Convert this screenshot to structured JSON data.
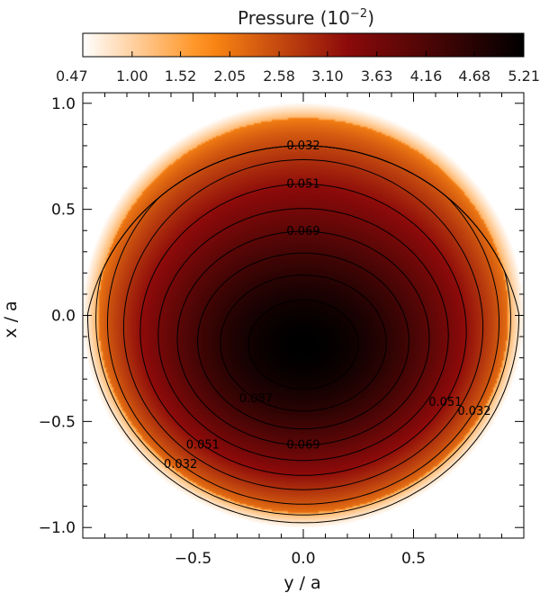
{
  "chart_data": {
    "type": "heatmap",
    "colorbar": {
      "title": "Pressure (10",
      "title_exponent": "−2",
      "title_close": ")",
      "ticks": [
        "0.47",
        "1.00",
        "1.52",
        "2.05",
        "2.58",
        "3.10",
        "3.63",
        "4.16",
        "4.68",
        "5.21"
      ],
      "vmin": 0.47,
      "vmax": 5.21,
      "colors": [
        "#ffffff",
        "#ff8c14",
        "#8c0a0a",
        "#000000"
      ],
      "color_stops": [
        0.0,
        0.28,
        0.6,
        1.0
      ]
    },
    "xlabel": "y / a",
    "ylabel": "x / a",
    "xlim": [
      -1.0,
      1.0
    ],
    "ylim": [
      -1.05,
      1.05
    ],
    "x_ticks": [
      "−0.5",
      "0.0",
      "0.5"
    ],
    "x_tick_values": [
      -0.5,
      0.0,
      0.5
    ],
    "y_ticks": [
      "1.0",
      "0.5",
      "0.0",
      "−0.5",
      "−1.0"
    ],
    "y_tick_values": [
      1.0,
      0.5,
      0.0,
      -0.5,
      -1.0
    ],
    "field": {
      "domain_radius": 1.0,
      "peak_center": [
        0.0,
        -0.2
      ],
      "peak_value": 5.21
    },
    "contours": [
      {
        "level": 0.014
      },
      {
        "level": 0.023
      },
      {
        "level": 0.032,
        "label": "0.032"
      },
      {
        "level": 0.042
      },
      {
        "level": 0.051,
        "label": "0.051"
      },
      {
        "level": 0.06
      },
      {
        "level": 0.069,
        "label": "0.069"
      },
      {
        "level": 0.078
      },
      {
        "level": 0.087,
        "label": "0.087"
      },
      {
        "level": 0.096
      }
    ],
    "grid": false
  }
}
